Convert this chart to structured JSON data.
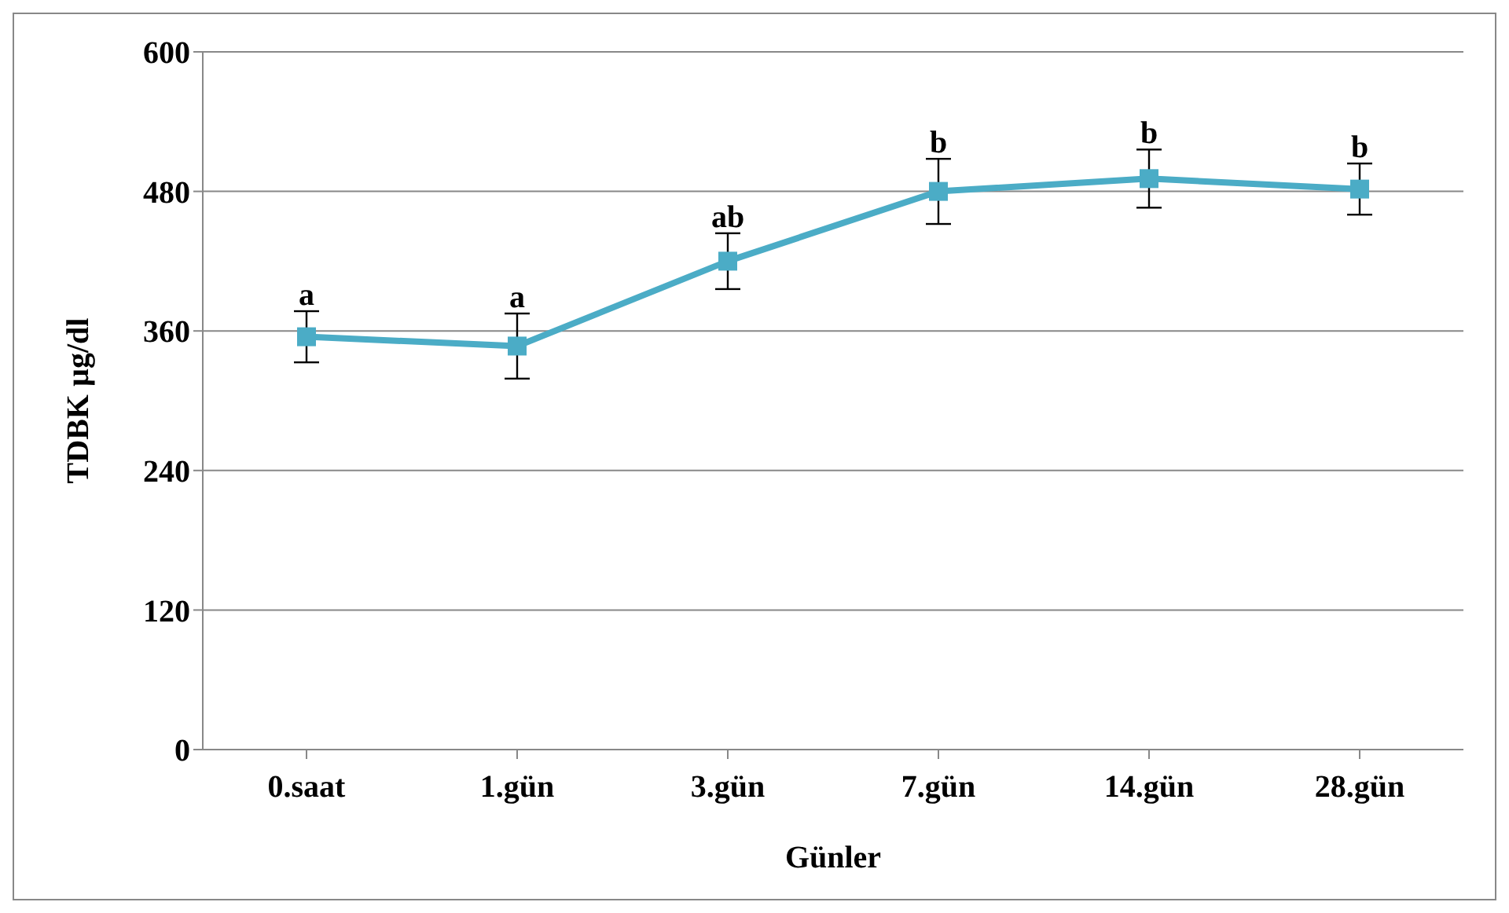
{
  "chart_data": {
    "type": "line",
    "xlabel": "Günler",
    "ylabel": "TDBK µg/dl",
    "categories": [
      "0.saat",
      "1.gün",
      "3.gün",
      "7.gün",
      "14.gün",
      "28.gün"
    ],
    "series": [
      {
        "color": "#4bacc6",
        "values": [
          355,
          347,
          420,
          480,
          491,
          482
        ],
        "errors": [
          22,
          28,
          24,
          28,
          25,
          22
        ]
      }
    ],
    "ylim": [
      0,
      600
    ],
    "yticks": [
      0,
      120,
      240,
      360,
      480,
      600
    ],
    "grid": "y",
    "marker": "square",
    "line_style": "solid",
    "legend": false,
    "annotations": [
      {
        "text": "a",
        "x": "0.saat",
        "y": 377
      },
      {
        "text": "a",
        "x": "1.gün",
        "y": 375
      },
      {
        "text": "ab",
        "x": "3.gün",
        "y": 444
      },
      {
        "text": "b",
        "x": "7.gün",
        "y": 508
      },
      {
        "text": "b",
        "x": "14.gün",
        "y": 516
      },
      {
        "text": "b",
        "x": "28.gün",
        "y": 504
      }
    ]
  }
}
